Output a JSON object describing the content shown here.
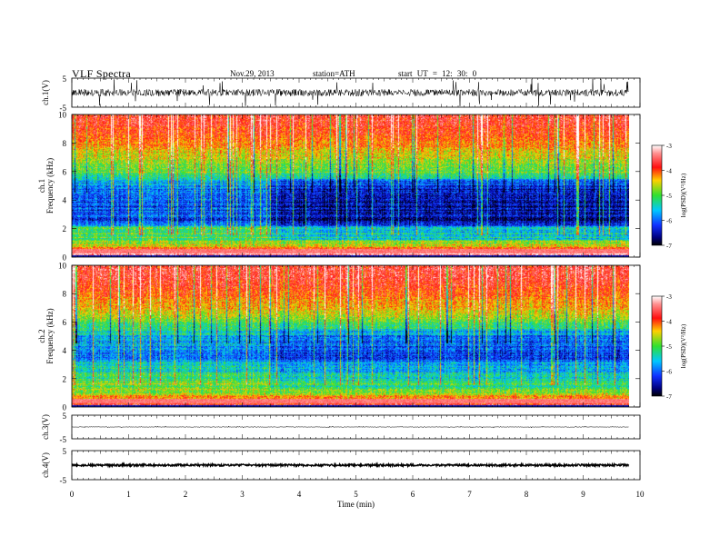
{
  "header": {
    "title": "VLF  Spectra",
    "date": "Nov.29, 2013",
    "station": "station=ATH",
    "start_ut": "start  UT  =   12: 30: 0"
  },
  "chart_data": [
    {
      "type": "line",
      "panel": "ch1-waveform",
      "ylabel": "ch.1(V)",
      "ylim": [
        -5,
        5
      ],
      "ytick_labels": [
        "5",
        "-5"
      ],
      "series": [
        {
          "values_description_level": 0,
          "noise_amplitude_v": 1.2,
          "spike_amplitude_v": 4.8
        }
      ],
      "color": "#000000"
    },
    {
      "type": "heatmap",
      "panel": "ch1-spectrogram",
      "ylabel_channel": "ch.1",
      "ylabel": "Frequency  (kHz)",
      "ylim": [
        0,
        10
      ],
      "ytick_labels": [
        "0",
        "2",
        "4",
        "6",
        "8",
        "10"
      ],
      "colorbar": {
        "label": "log(PSD)(V²/Hz)",
        "range": [
          -7,
          -3
        ],
        "tick_labels": [
          "-3",
          "-4",
          "-5",
          "-6",
          "-7"
        ]
      },
      "spectral_profile_kHz": [
        [
          0.0,
          -3.3
        ],
        [
          0.4,
          -3.2
        ],
        [
          0.8,
          -4.6
        ],
        [
          1.5,
          -5.0
        ],
        [
          2.0,
          -5.2
        ],
        [
          2.5,
          -6.2
        ],
        [
          3.0,
          -6.1
        ],
        [
          4.0,
          -6.2
        ],
        [
          5.0,
          -5.9
        ],
        [
          6.0,
          -5.0
        ],
        [
          7.0,
          -4.6
        ],
        [
          8.0,
          -4.1
        ],
        [
          9.0,
          -3.8
        ],
        [
          10.0,
          -3.6
        ]
      ],
      "band_change_time_min": 3.5
    },
    {
      "type": "heatmap",
      "panel": "ch2-spectrogram",
      "ylabel_channel": "ch.2",
      "ylabel": "Frequency  (kHz)",
      "ylim": [
        0,
        10
      ],
      "ytick_labels": [
        "0",
        "2",
        "4",
        "6",
        "8",
        "10"
      ],
      "colorbar": {
        "label": "log(PSD)(V²/Hz)",
        "range": [
          -7,
          -3
        ],
        "tick_labels": [
          "-3",
          "-4",
          "-5",
          "-6",
          "-7"
        ]
      },
      "spectral_profile_kHz": [
        [
          0.0,
          -3.6
        ],
        [
          0.4,
          -4.0
        ],
        [
          0.8,
          -4.5
        ],
        [
          1.5,
          -4.8
        ],
        [
          2.0,
          -5.0
        ],
        [
          2.5,
          -5.3
        ],
        [
          3.0,
          -5.6
        ],
        [
          4.0,
          -5.9
        ],
        [
          5.0,
          -5.5
        ],
        [
          6.0,
          -4.9
        ],
        [
          7.0,
          -4.4
        ],
        [
          8.0,
          -4.0
        ],
        [
          9.0,
          -3.7
        ],
        [
          10.0,
          -3.6
        ]
      ],
      "band_change_time_min": 3.5
    },
    {
      "type": "line",
      "panel": "ch3-waveform",
      "ylabel": "ch.3(V)",
      "ylim": [
        -5,
        5
      ],
      "ytick_labels": [
        "5",
        "-5"
      ],
      "series": [
        {
          "values_description_level": 0,
          "noise_amplitude_v": 0.1,
          "spike_amplitude_v": 0.4
        }
      ],
      "color": "#000000"
    },
    {
      "type": "line",
      "panel": "ch4-waveform",
      "ylabel": "ch.4(V)",
      "ylim": [
        -5,
        5
      ],
      "ytick_labels": [
        "5",
        "-5"
      ],
      "series": [
        {
          "values_description_level": 0,
          "noise_amplitude_v": 0.35,
          "spike_amplitude_v": 0.35
        }
      ],
      "color": "#000000"
    }
  ],
  "x_axis": {
    "label": "Time  (min)",
    "xlim": [
      0,
      10
    ],
    "data_end_min": 9.8,
    "tick_labels": [
      "0",
      "1",
      "2",
      "3",
      "4",
      "5",
      "6",
      "7",
      "8",
      "9",
      "10"
    ]
  }
}
